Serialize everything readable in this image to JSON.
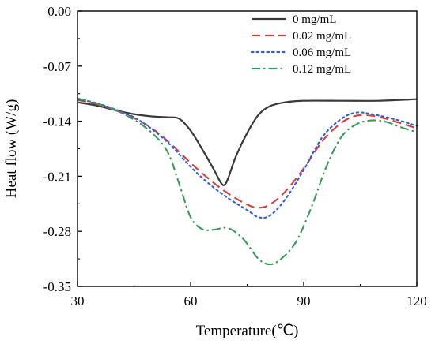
{
  "chart_data": {
    "type": "line",
    "xlabel": "Temperature(℃)",
    "ylabel": "Heat flow (W/g)",
    "xlim": [
      30,
      120
    ],
    "ylim": [
      -0.35,
      0.0
    ],
    "xticks": [
      30,
      60,
      90,
      120
    ],
    "yticks": [
      0.0,
      -0.07,
      -0.14,
      -0.21,
      -0.28,
      -0.35
    ],
    "xtick_labels": [
      "30",
      "60",
      "90",
      "120"
    ],
    "ytick_labels": [
      "0.00",
      "-0.07",
      "-0.14",
      "-0.21",
      "-0.28",
      "-0.35"
    ],
    "grid": false,
    "legend_position": "top-right",
    "series": [
      {
        "name": "0 mg/mL",
        "color": "#3a3a3a",
        "dash": "solid",
        "points": [
          [
            30,
            -0.116
          ],
          [
            35,
            -0.12
          ],
          [
            40,
            -0.126
          ],
          [
            45,
            -0.131
          ],
          [
            50,
            -0.134
          ],
          [
            54,
            -0.135
          ],
          [
            57,
            -0.137
          ],
          [
            60,
            -0.152
          ],
          [
            63,
            -0.175
          ],
          [
            66,
            -0.2
          ],
          [
            68,
            -0.218
          ],
          [
            69,
            -0.221
          ],
          [
            70,
            -0.212
          ],
          [
            72,
            -0.185
          ],
          [
            75,
            -0.155
          ],
          [
            78,
            -0.132
          ],
          [
            81,
            -0.121
          ],
          [
            85,
            -0.116
          ],
          [
            90,
            -0.114
          ],
          [
            100,
            -0.114
          ],
          [
            110,
            -0.114
          ],
          [
            120,
            -0.112
          ]
        ]
      },
      {
        "name": "0.02 mg/mL",
        "color": "#d93c3c",
        "dash": "dashed",
        "points": [
          [
            30,
            -0.113
          ],
          [
            35,
            -0.118
          ],
          [
            40,
            -0.126
          ],
          [
            45,
            -0.136
          ],
          [
            50,
            -0.15
          ],
          [
            55,
            -0.17
          ],
          [
            60,
            -0.193
          ],
          [
            65,
            -0.214
          ],
          [
            70,
            -0.232
          ],
          [
            75,
            -0.246
          ],
          [
            78,
            -0.25
          ],
          [
            81,
            -0.246
          ],
          [
            85,
            -0.23
          ],
          [
            90,
            -0.2
          ],
          [
            95,
            -0.165
          ],
          [
            100,
            -0.142
          ],
          [
            104,
            -0.133
          ],
          [
            108,
            -0.133
          ],
          [
            112,
            -0.137
          ],
          [
            116,
            -0.143
          ],
          [
            120,
            -0.149
          ]
        ]
      },
      {
        "name": "0.06 mg/mL",
        "color": "#2e5fd6",
        "dash": "dotted",
        "points": [
          [
            30,
            -0.112
          ],
          [
            35,
            -0.117
          ],
          [
            40,
            -0.125
          ],
          [
            45,
            -0.135
          ],
          [
            50,
            -0.151
          ],
          [
            55,
            -0.172
          ],
          [
            60,
            -0.198
          ],
          [
            65,
            -0.22
          ],
          [
            70,
            -0.238
          ],
          [
            75,
            -0.253
          ],
          [
            78,
            -0.262
          ],
          [
            81,
            -0.26
          ],
          [
            85,
            -0.24
          ],
          [
            90,
            -0.202
          ],
          [
            95,
            -0.16
          ],
          [
            100,
            -0.137
          ],
          [
            104,
            -0.129
          ],
          [
            108,
            -0.131
          ],
          [
            112,
            -0.135
          ],
          [
            116,
            -0.14
          ],
          [
            120,
            -0.146
          ]
        ]
      },
      {
        "name": "0.12 mg/mL",
        "color": "#3a9a5c",
        "dash": "dashdot",
        "points": [
          [
            30,
            -0.111
          ],
          [
            35,
            -0.117
          ],
          [
            40,
            -0.126
          ],
          [
            45,
            -0.138
          ],
          [
            50,
            -0.156
          ],
          [
            54,
            -0.18
          ],
          [
            57,
            -0.22
          ],
          [
            60,
            -0.262
          ],
          [
            63,
            -0.277
          ],
          [
            66,
            -0.278
          ],
          [
            70,
            -0.276
          ],
          [
            74,
            -0.29
          ],
          [
            78,
            -0.315
          ],
          [
            81,
            -0.322
          ],
          [
            84,
            -0.315
          ],
          [
            88,
            -0.293
          ],
          [
            92,
            -0.25
          ],
          [
            96,
            -0.198
          ],
          [
            100,
            -0.16
          ],
          [
            104,
            -0.144
          ],
          [
            108,
            -0.139
          ],
          [
            112,
            -0.141
          ],
          [
            116,
            -0.148
          ],
          [
            120,
            -0.154
          ]
        ]
      }
    ]
  }
}
